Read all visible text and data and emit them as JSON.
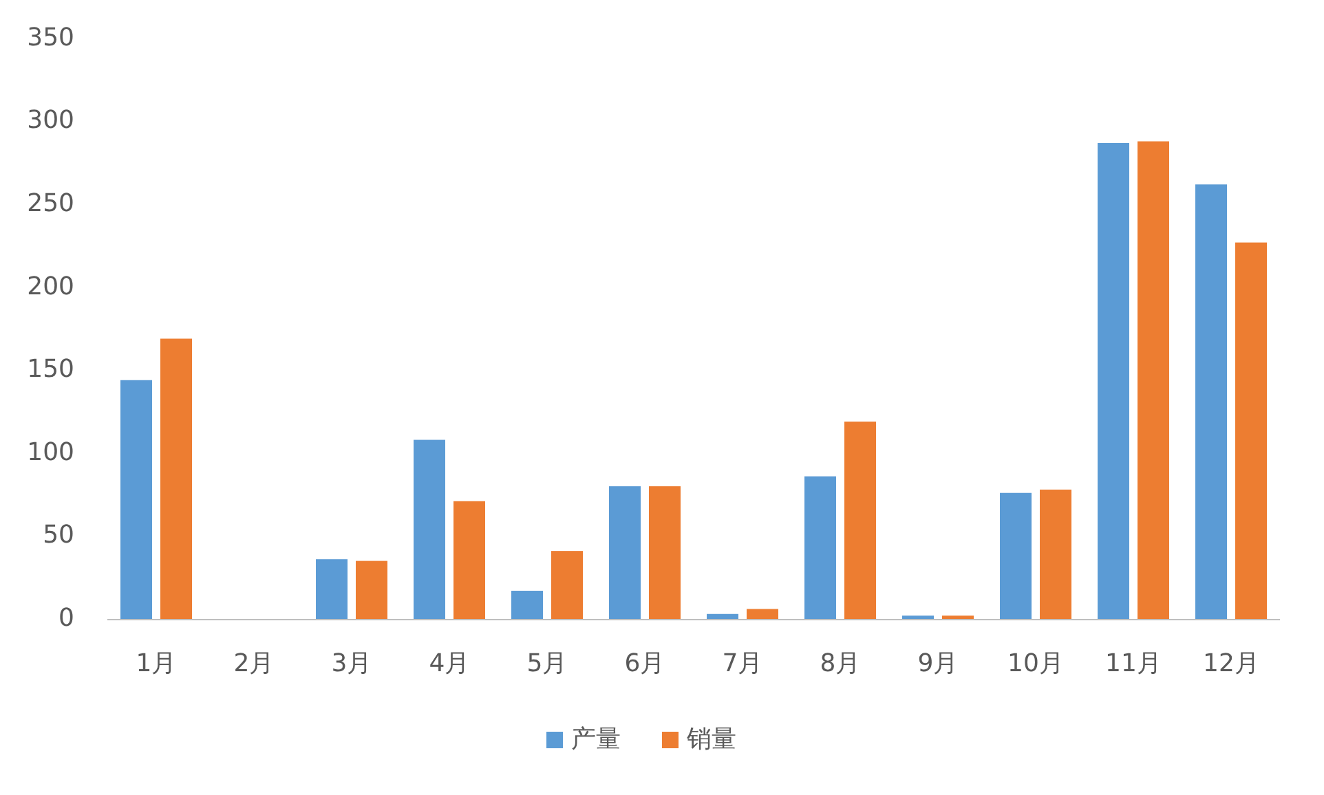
{
  "chart_data": {
    "type": "bar",
    "categories": [
      "1月",
      "2月",
      "3月",
      "4月",
      "5月",
      "6月",
      "7月",
      "8月",
      "9月",
      "10月",
      "11月",
      "12月"
    ],
    "series": [
      {
        "name": "产量",
        "color": "#5b9bd5",
        "values": [
          144,
          0,
          36,
          108,
          17,
          80,
          3,
          86,
          2,
          76,
          287,
          262
        ]
      },
      {
        "name": "销量",
        "color": "#ed7d31",
        "values": [
          169,
          0,
          35,
          71,
          41,
          80,
          6,
          119,
          2,
          78,
          288,
          227
        ]
      }
    ],
    "ylim": [
      0,
      350
    ],
    "yticks": [
      0,
      50,
      100,
      150,
      200,
      250,
      300,
      350
    ],
    "grid": false,
    "legend": "bottom"
  }
}
